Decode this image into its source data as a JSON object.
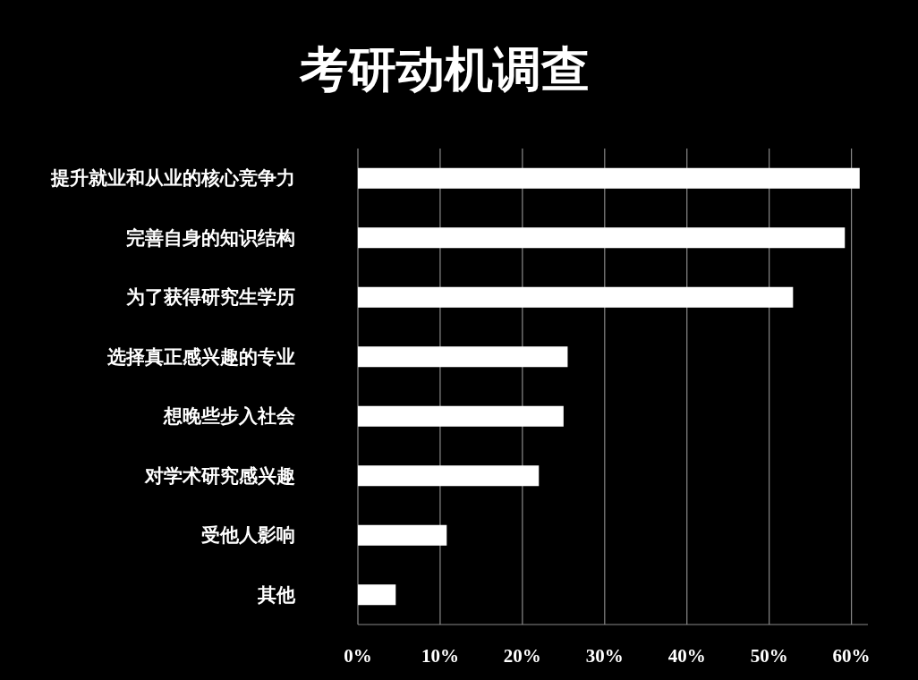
{
  "chart_data": {
    "type": "bar",
    "orientation": "horizontal",
    "title": "考研动机调查",
    "categories": [
      "提升就业和从业的核心竞争力",
      "完善自身的知识结构",
      "为了获得研究生学历",
      "选择真正感兴趣的专业",
      "想晚些步入社会",
      "对学术研究感兴趣",
      "受他人影响",
      "其他"
    ],
    "values": [
      61.0,
      59.2,
      52.9,
      25.5,
      25.0,
      22.0,
      10.8,
      4.6
    ],
    "color": "#ffffff",
    "xlim": [
      0,
      62
    ],
    "xticks": [
      {
        "value": 0,
        "label": "0%"
      },
      {
        "value": 10,
        "label": "10%"
      },
      {
        "value": 20,
        "label": "20%"
      },
      {
        "value": 30,
        "label": "30%"
      },
      {
        "value": 40,
        "label": "40%"
      },
      {
        "value": 50,
        "label": "50%"
      },
      {
        "value": 60,
        "label": "60%"
      }
    ],
    "grid": "x"
  }
}
